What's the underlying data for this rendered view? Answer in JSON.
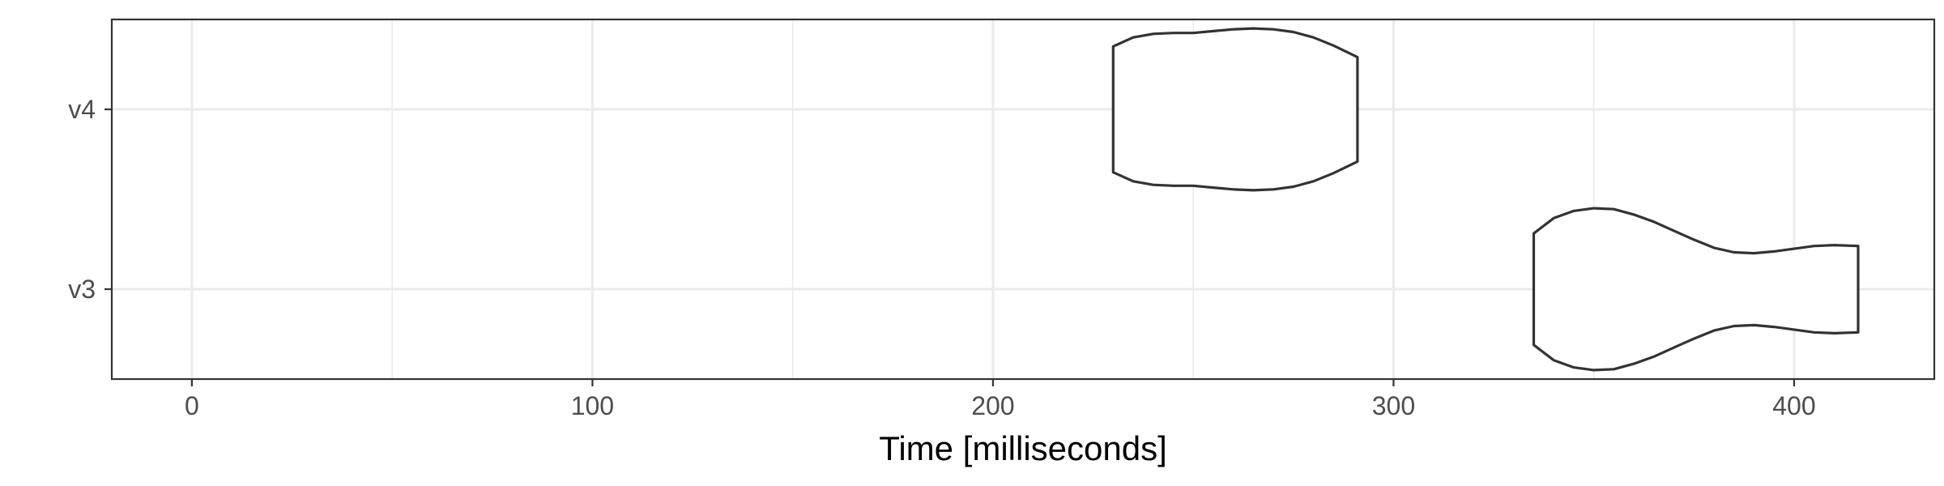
{
  "chart_data": {
    "type": "violin",
    "title": "",
    "xlabel": "Time [milliseconds]",
    "ylabel": "",
    "xlim": [
      -20,
      435
    ],
    "x_ticks": [
      0,
      100,
      200,
      300,
      400
    ],
    "x_minor_ticks": [
      50,
      150,
      250,
      350
    ],
    "grid": true,
    "categories": [
      "v3",
      "v4"
    ],
    "series": [
      {
        "category": "v4",
        "min": 230,
        "max": 291,
        "density": [
          [
            230,
            0.7
          ],
          [
            235,
            0.8
          ],
          [
            240,
            0.84
          ],
          [
            245,
            0.85
          ],
          [
            250,
            0.85
          ],
          [
            255,
            0.87
          ],
          [
            260,
            0.89
          ],
          [
            265,
            0.9
          ],
          [
            270,
            0.89
          ],
          [
            275,
            0.86
          ],
          [
            280,
            0.8
          ],
          [
            285,
            0.71
          ],
          [
            291,
            0.58
          ]
        ]
      },
      {
        "category": "v3",
        "min": 335,
        "max": 416,
        "density": [
          [
            335,
            0.62
          ],
          [
            340,
            0.79
          ],
          [
            345,
            0.87
          ],
          [
            350,
            0.9
          ],
          [
            355,
            0.89
          ],
          [
            360,
            0.83
          ],
          [
            365,
            0.75
          ],
          [
            370,
            0.65
          ],
          [
            375,
            0.55
          ],
          [
            380,
            0.46
          ],
          [
            385,
            0.41
          ],
          [
            390,
            0.4
          ],
          [
            395,
            0.42
          ],
          [
            400,
            0.45
          ],
          [
            405,
            0.48
          ],
          [
            410,
            0.49
          ],
          [
            416,
            0.48
          ]
        ]
      }
    ]
  }
}
